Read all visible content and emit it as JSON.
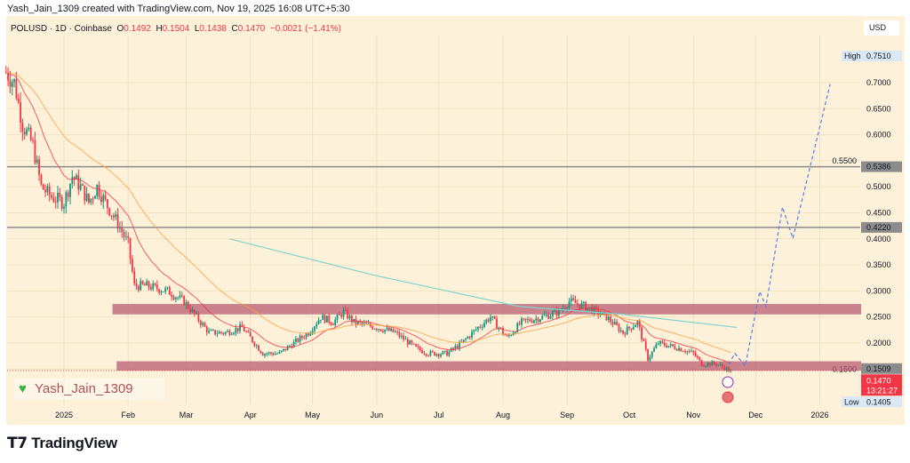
{
  "header": {
    "created": "Yash_Jain_1309 created with TradingView.com, Nov 19, 2025 16:08 UTC+5:30"
  },
  "legend": {
    "symbol": "POLUSD · 1D · Coinbase",
    "o_label": "O",
    "o": "0.1492",
    "h_label": "H",
    "h": "0.1504",
    "l_label": "L",
    "l": "0.1438",
    "c_label": "C",
    "c": "0.1470",
    "change": "−0.0021 (−1.41%)"
  },
  "currency": "USD",
  "watermark": "Yash_Jain_1309",
  "brand": "TradingView",
  "colors": {
    "up": "#089981",
    "down": "#f23645",
    "zone": "#b5596f",
    "ema_fast": "#f23645",
    "ema_slow": "#ff9f40",
    "ma_long": "#7fd6c9",
    "projection": "#5b7ee5"
  },
  "chart_data": {
    "type": "candlestick",
    "title": "POLUSD · 1D · Coinbase",
    "x_unit": "days since 2025-01-01",
    "xlim": [
      -29,
      395
    ],
    "ylim": [
      0.095,
      0.78
    ],
    "x_ticks": [
      {
        "d": 0,
        "label": "2025"
      },
      {
        "d": 31,
        "label": "Feb"
      },
      {
        "d": 59,
        "label": "Mar"
      },
      {
        "d": 90,
        "label": "Apr"
      },
      {
        "d": 120,
        "label": "May"
      },
      {
        "d": 151,
        "label": "Jun"
      },
      {
        "d": 181,
        "label": "Jul"
      },
      {
        "d": 212,
        "label": "Aug"
      },
      {
        "d": 243,
        "label": "Sep"
      },
      {
        "d": 273,
        "label": "Oct"
      },
      {
        "d": 304,
        "label": "Nov"
      },
      {
        "d": 334,
        "label": "Dec"
      },
      {
        "d": 365,
        "label": "2026"
      }
    ],
    "y_ticks": [
      "0.7000",
      "0.6500",
      "0.6000",
      "0.5500",
      "0.5000",
      "0.4500",
      "0.4000",
      "0.3500",
      "0.3000",
      "0.2500",
      "0.2000",
      "0.1500"
    ],
    "close_path": [
      [
        -28,
        0.72
      ],
      [
        -24,
        0.7
      ],
      [
        -20,
        0.62
      ],
      [
        -15,
        0.58
      ],
      [
        -11,
        0.5
      ],
      [
        -6,
        0.48
      ],
      [
        0,
        0.47
      ],
      [
        4,
        0.52
      ],
      [
        8,
        0.5
      ],
      [
        12,
        0.47
      ],
      [
        16,
        0.5
      ],
      [
        20,
        0.47
      ],
      [
        26,
        0.43
      ],
      [
        31,
        0.39
      ],
      [
        34,
        0.31
      ],
      [
        40,
        0.31
      ],
      [
        50,
        0.3
      ],
      [
        58,
        0.28
      ],
      [
        64,
        0.25
      ],
      [
        70,
        0.22
      ],
      [
        78,
        0.22
      ],
      [
        86,
        0.23
      ],
      [
        96,
        0.18
      ],
      [
        104,
        0.18
      ],
      [
        111,
        0.2
      ],
      [
        118,
        0.22
      ],
      [
        124,
        0.25
      ],
      [
        130,
        0.24
      ],
      [
        135,
        0.26
      ],
      [
        140,
        0.24
      ],
      [
        151,
        0.23
      ],
      [
        160,
        0.22
      ],
      [
        170,
        0.19
      ],
      [
        176,
        0.18
      ],
      [
        185,
        0.18
      ],
      [
        192,
        0.2
      ],
      [
        200,
        0.23
      ],
      [
        206,
        0.25
      ],
      [
        214,
        0.21
      ],
      [
        221,
        0.24
      ],
      [
        231,
        0.25
      ],
      [
        239,
        0.26
      ],
      [
        244,
        0.28
      ],
      [
        252,
        0.27
      ],
      [
        262,
        0.25
      ],
      [
        270,
        0.22
      ],
      [
        277,
        0.24
      ],
      [
        282,
        0.17
      ],
      [
        287,
        0.2
      ],
      [
        297,
        0.19
      ],
      [
        304,
        0.18
      ],
      [
        308,
        0.16
      ],
      [
        315,
        0.16
      ],
      [
        322,
        0.147
      ]
    ],
    "ma_long": [
      [
        80,
        0.4
      ],
      [
        150,
        0.33
      ],
      [
        220,
        0.27
      ],
      [
        270,
        0.255
      ],
      [
        325,
        0.23
      ]
    ],
    "projection": [
      [
        321,
        0.159
      ],
      [
        324,
        0.18
      ],
      [
        329,
        0.156
      ],
      [
        336,
        0.299
      ],
      [
        339,
        0.27
      ],
      [
        347,
        0.461
      ],
      [
        352,
        0.401
      ],
      [
        370,
        0.697
      ]
    ],
    "zones": [
      {
        "from": 0.255,
        "to": 0.275,
        "start": 23
      },
      {
        "from": 0.147,
        "to": 0.165,
        "start": 25
      }
    ],
    "levels": [
      "0.5386",
      "0.4220"
    ],
    "level_values": [
      0.5386,
      0.422
    ],
    "markers": {
      "high_label": "High",
      "high": "0.7510",
      "low_label": "Low",
      "low": "0.1405",
      "zone_top": "0.1509",
      "last": "0.1470",
      "countdown": "13:21:27"
    }
  }
}
